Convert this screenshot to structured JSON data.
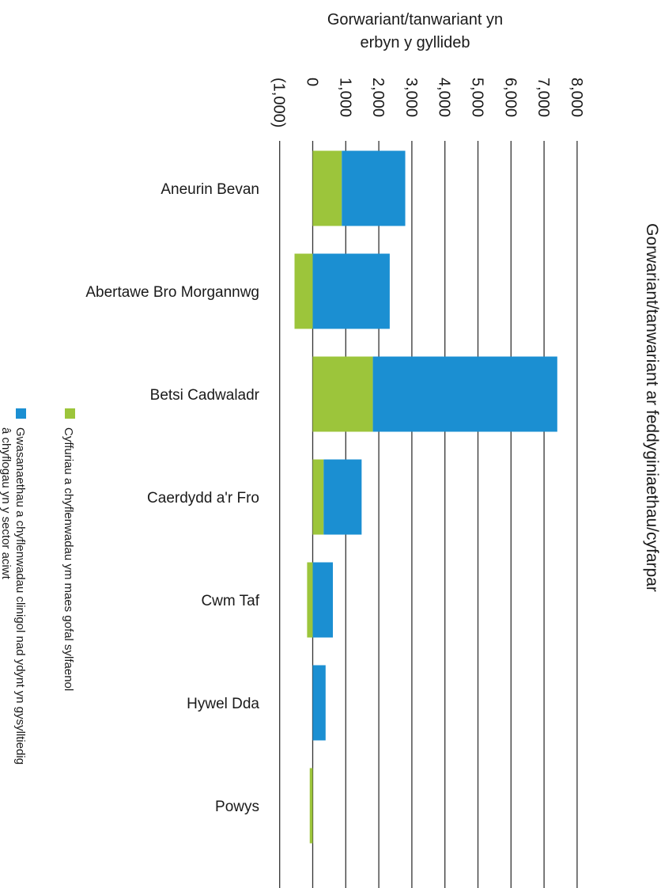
{
  "chart_data": {
    "type": "bar",
    "stacked": true,
    "orientation": "horizontal",
    "title": "Gorwariant/tanwariant ar feddyginiaethau/cyfarpar",
    "xlabel_line1": "Gorwariant/tanwariant yn",
    "xlabel_line2": "erbyn y gyllideb",
    "xlim": [
      -1000,
      8000
    ],
    "ticks": [
      -1000,
      0,
      1000,
      2000,
      3000,
      4000,
      5000,
      6000,
      7000,
      8000
    ],
    "tick_labels": [
      "(1,000)",
      "0",
      "1,000",
      "2,000",
      "3,000",
      "4,000",
      "5,000",
      "6,000",
      "7,000",
      "8,000"
    ],
    "grid": true,
    "legend_position": "bottom-left",
    "categories": [
      "Aneurin Bevan",
      "Abertawe Bro Morgannwg",
      "Betsi Cadwaladr",
      "Caerdydd a'r Fro",
      "Cwm Taf",
      "Hywel Dda",
      "Powys"
    ],
    "series": [
      {
        "name": "Cyffuriau a chyflenwadau ym maes gofal sylfaenol",
        "color": "#9cc53b",
        "values": [
          880,
          -550,
          1820,
          330,
          -170,
          0,
          -90
        ]
      },
      {
        "name": "Gwasanaethau a chyflenwadau clinigol nad ydynt yn gysylltiedig â chyflogau yn y sector aciwt",
        "name_line1": "Gwasanaethau a chyflenwadau clinigol nad ydynt yn gysylltiedig",
        "name_line2": "â chyflogau yn y sector aciwt",
        "color": "#1b8fd2",
        "values": [
          1920,
          2330,
          5580,
          1150,
          610,
          390,
          0
        ]
      }
    ]
  }
}
